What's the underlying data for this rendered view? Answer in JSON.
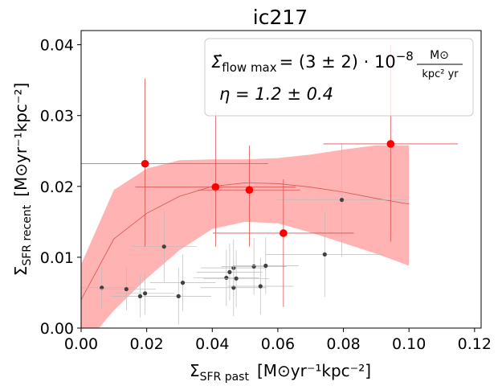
{
  "chart_data": {
    "type": "scatter",
    "title": "ic217",
    "xlabel_main": "Σ",
    "xlabel_sub": "SFR past",
    "xlabel_units": "[M⊙yr⁻¹kpc⁻²]",
    "ylabel_main": "Σ",
    "ylabel_sub": "SFR recent",
    "ylabel_units": "[M⊙yr⁻¹kpc⁻²]",
    "xlim": [
      0.0,
      0.122
    ],
    "ylim": [
      0.0,
      0.042
    ],
    "xticks": [
      0.0,
      0.02,
      0.04,
      0.06,
      0.08,
      0.1,
      0.12
    ],
    "xtick_labels": [
      "0.00",
      "0.02",
      "0.04",
      "0.06",
      "0.08",
      "0.10",
      "0.12"
    ],
    "yticks": [
      0.0,
      0.01,
      0.02,
      0.03,
      0.04
    ],
    "ytick_labels": [
      "0.00",
      "0.01",
      "0.02",
      "0.03",
      "0.04"
    ],
    "annotations": {
      "flow_line_lhs": "Σ̇",
      "flow_line_sub": "flow max",
      "flow_line_rhs": "= (3 ± 2) · 10",
      "flow_line_exp": "−8",
      "flow_unit_num": "M⊙",
      "flow_unit_den": "kpc² yr",
      "eta_line": "η = 1.2 ± 0.4"
    },
    "colors": {
      "red_points": "#ff0000",
      "red_errorbars": "#d9534f",
      "band_fill": "#ffb3b3",
      "model_line": "#d9534f",
      "gray_points": "#404040",
      "gray_errorbars": "#bbbbbb"
    },
    "series": [
      {
        "kind": "red-points",
        "points": [
          {
            "x": 0.0195,
            "y": 0.0232,
            "xerr": 0.0375,
            "ylo": 0.0115,
            "yhi": 0.0352
          },
          {
            "x": 0.041,
            "y": 0.0199,
            "xerr": 0.0245,
            "ylo": 0.0115,
            "yhi": 0.0305
          },
          {
            "x": 0.0513,
            "y": 0.0195,
            "xerr": 0.0155,
            "ylo": 0.0115,
            "yhi": 0.0258
          },
          {
            "x": 0.0617,
            "y": 0.0134,
            "xerr": 0.0215,
            "ylo": 0.003,
            "yhi": 0.021
          },
          {
            "x": 0.0944,
            "y": 0.026,
            "xerr": 0.0205,
            "ylo": 0.0122,
            "yhi": 0.04
          }
        ]
      },
      {
        "kind": "gray-points",
        "points": [
          {
            "x": 0.0063,
            "y": 0.0057,
            "xerr": 0.01,
            "yerr": 0.003
          },
          {
            "x": 0.0138,
            "y": 0.0055,
            "xerr": 0.009,
            "yerr": 0.003
          },
          {
            "x": 0.018,
            "y": 0.0045,
            "xerr": 0.009,
            "yerr": 0.003
          },
          {
            "x": 0.0195,
            "y": 0.0049,
            "xerr": 0.009,
            "yerr": 0.003
          },
          {
            "x": 0.0253,
            "y": 0.0115,
            "xerr": 0.01,
            "yerr": 0.005
          },
          {
            "x": 0.0297,
            "y": 0.0045,
            "xerr": 0.01,
            "yerr": 0.004
          },
          {
            "x": 0.031,
            "y": 0.0064,
            "xerr": 0.01,
            "yerr": 0.004
          },
          {
            "x": 0.0443,
            "y": 0.0071,
            "xerr": 0.01,
            "yerr": 0.004
          },
          {
            "x": 0.0453,
            "y": 0.0079,
            "xerr": 0.01,
            "yerr": 0.004
          },
          {
            "x": 0.0465,
            "y": 0.0085,
            "xerr": 0.01,
            "yerr": 0.004
          },
          {
            "x": 0.0465,
            "y": 0.0057,
            "xerr": 0.01,
            "yerr": 0.004
          },
          {
            "x": 0.0473,
            "y": 0.007,
            "xerr": 0.01,
            "yerr": 0.004
          },
          {
            "x": 0.0527,
            "y": 0.0087,
            "xerr": 0.01,
            "yerr": 0.004
          },
          {
            "x": 0.0547,
            "y": 0.0059,
            "xerr": 0.01,
            "yerr": 0.004
          },
          {
            "x": 0.0563,
            "y": 0.0088,
            "xerr": 0.01,
            "yerr": 0.004
          },
          {
            "x": 0.0743,
            "y": 0.0104,
            "xerr": 0.018,
            "yerr": 0.006
          },
          {
            "x": 0.0795,
            "y": 0.0181,
            "xerr": 0.02,
            "yerr": 0.008
          }
        ]
      },
      {
        "kind": "model-band",
        "x": [
          0.0,
          0.01,
          0.02,
          0.03,
          0.04,
          0.05,
          0.06,
          0.07,
          0.08,
          0.09,
          0.1
        ],
        "upper": [
          0.009,
          0.0195,
          0.0225,
          0.0237,
          0.0238,
          0.0238,
          0.024,
          0.0245,
          0.0252,
          0.0258,
          0.0258
        ],
        "lower": [
          -0.003,
          0.0025,
          0.007,
          0.011,
          0.014,
          0.015,
          0.0148,
          0.0135,
          0.012,
          0.0105,
          0.0088
        ],
        "center": [
          0.004,
          0.0126,
          0.0162,
          0.0186,
          0.02,
          0.0205,
          0.0204,
          0.0199,
          0.0192,
          0.0183,
          0.0175
        ]
      }
    ]
  }
}
